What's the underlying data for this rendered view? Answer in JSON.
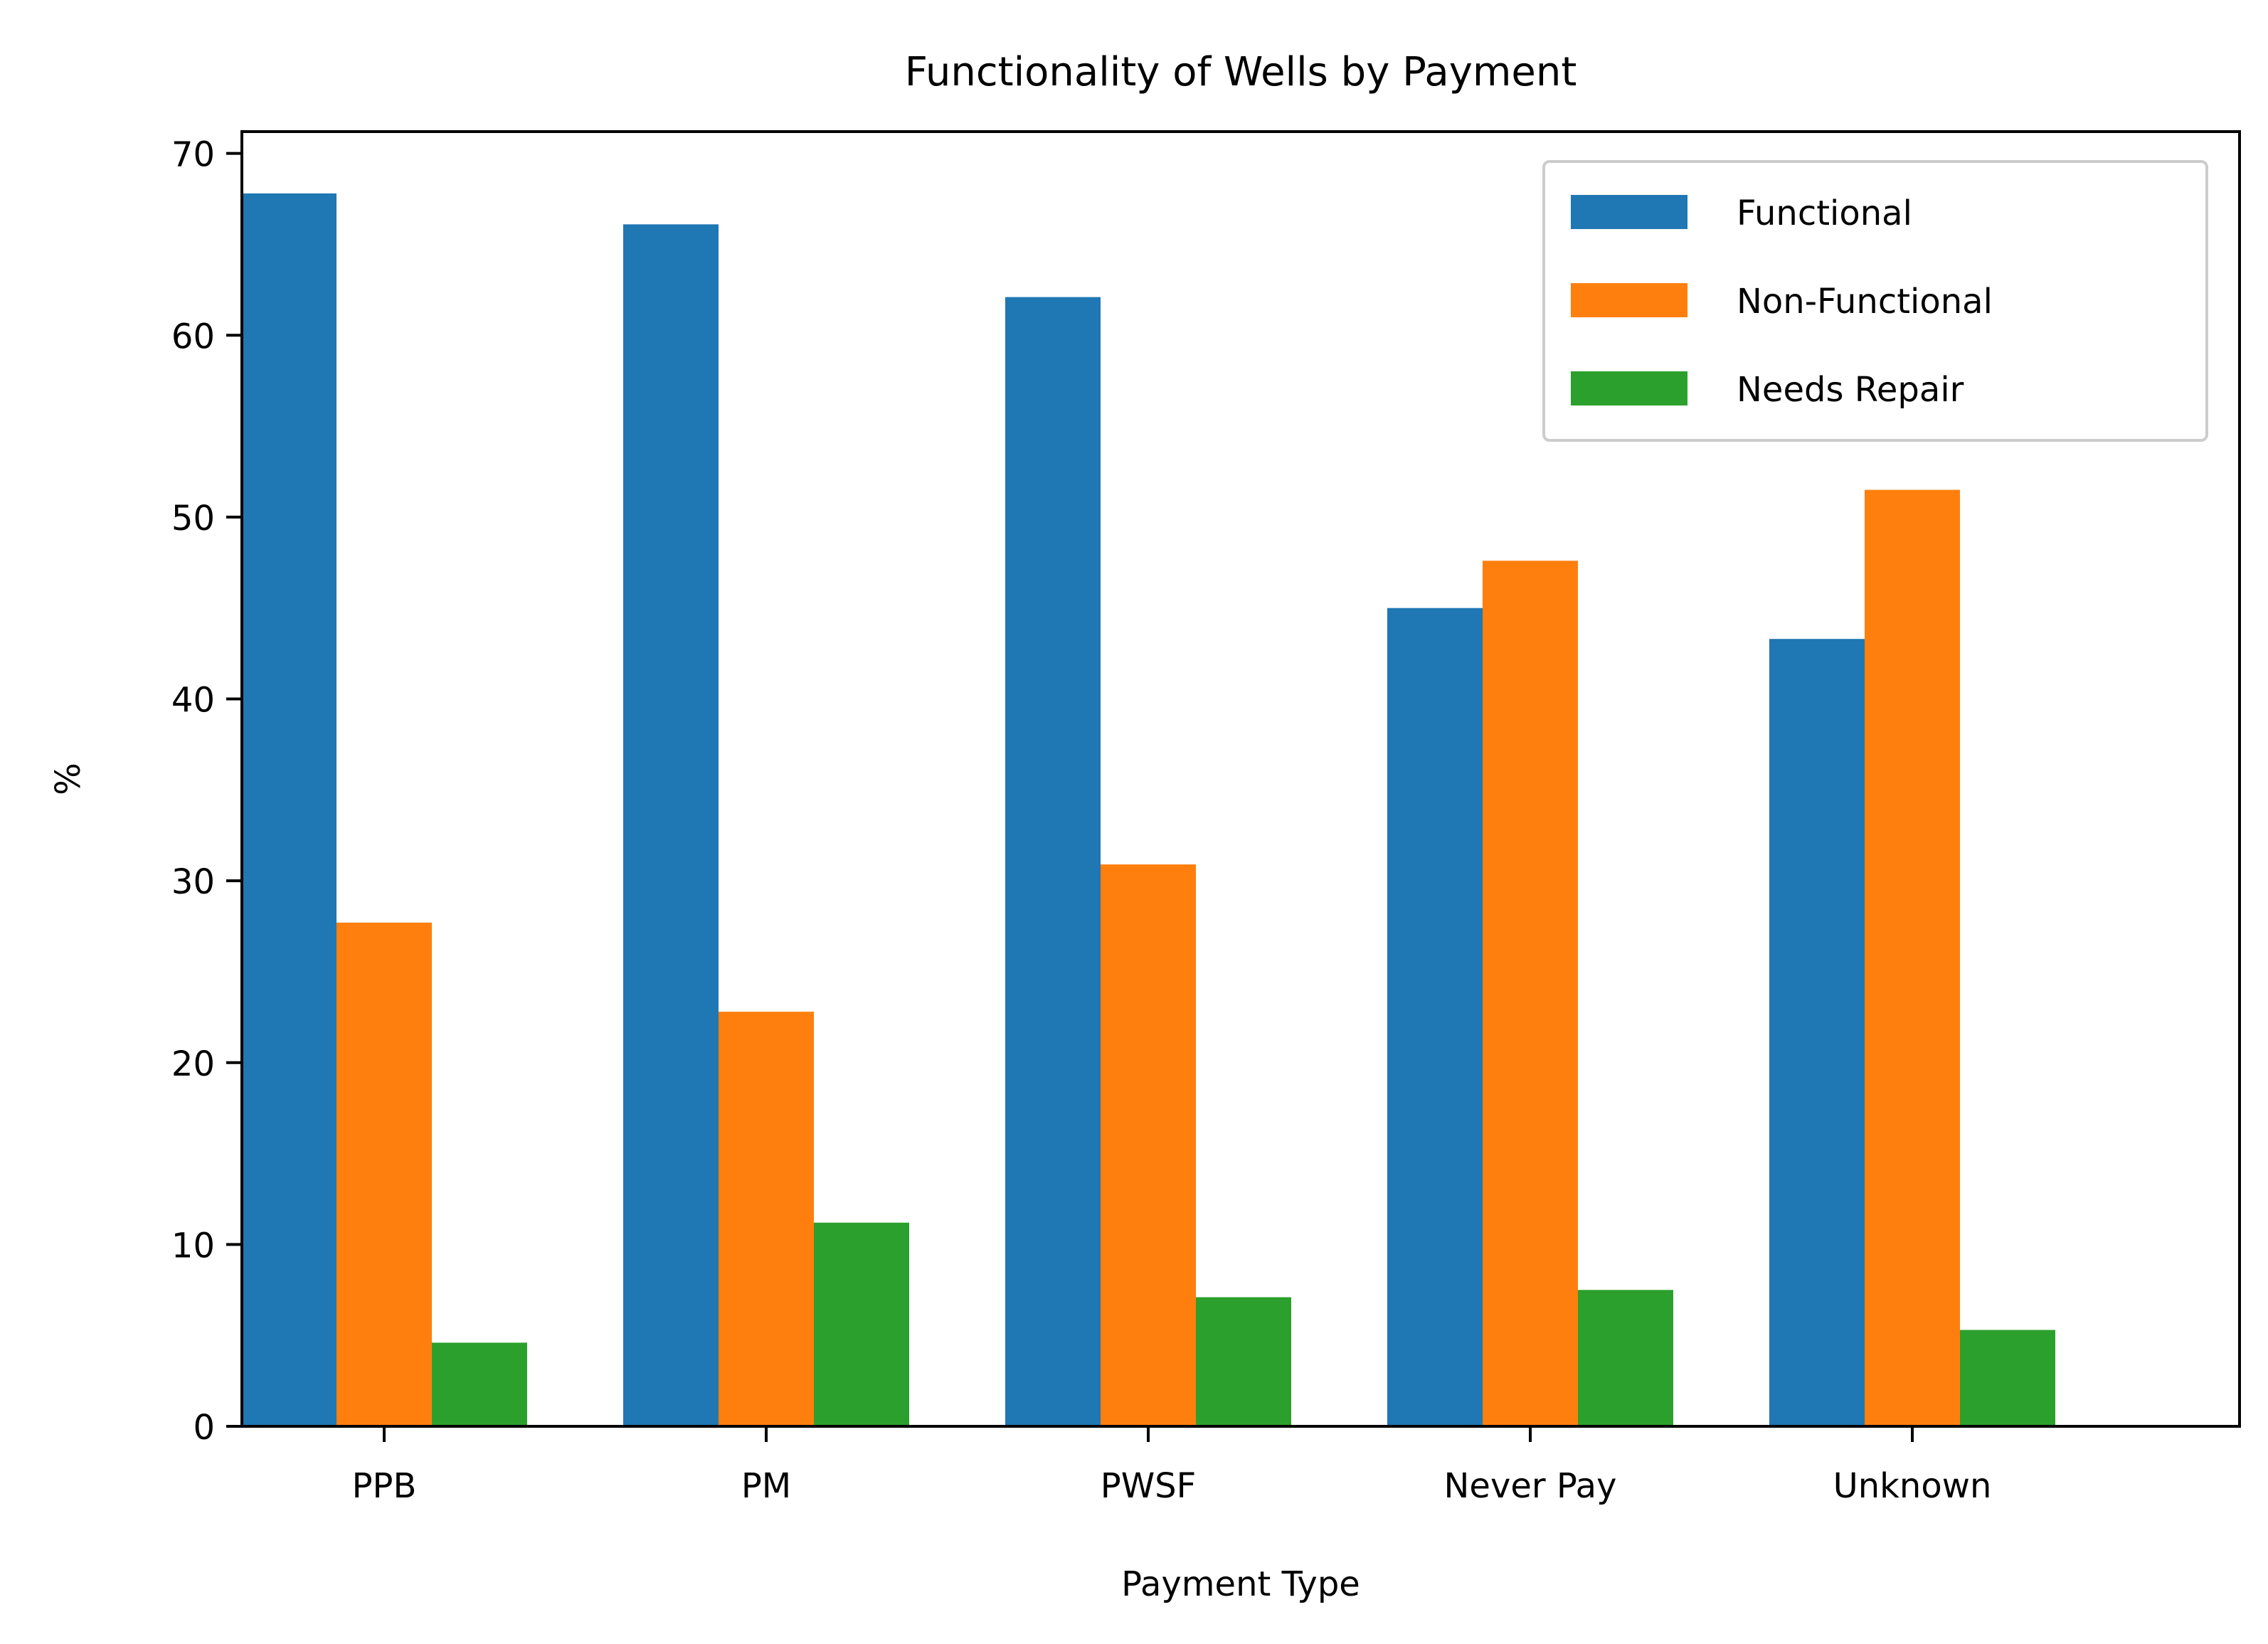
{
  "chart_data": {
    "type": "bar",
    "title": "Functionality of Wells by Payment",
    "xlabel": "Payment Type",
    "ylabel": "%",
    "categories": [
      "PPB",
      "PM",
      "PWSF",
      "Never Pay",
      "Unknown"
    ],
    "series": [
      {
        "name": "Functional",
        "color": "#1f77b4",
        "values": [
          67.8,
          66.1,
          62.1,
          45.0,
          43.3
        ]
      },
      {
        "name": "Non-Functional",
        "color": "#ff7f0e",
        "values": [
          27.7,
          22.8,
          30.9,
          47.6,
          51.5
        ]
      },
      {
        "name": "Needs Repair",
        "color": "#2ca02c",
        "values": [
          4.6,
          11.2,
          7.1,
          7.5,
          5.3
        ]
      }
    ],
    "ylim": [
      0,
      71.2
    ],
    "yticks": [
      "0",
      "10",
      "20",
      "30",
      "40",
      "50",
      "60",
      "70"
    ],
    "grid": false,
    "legend_position": "top-right"
  }
}
